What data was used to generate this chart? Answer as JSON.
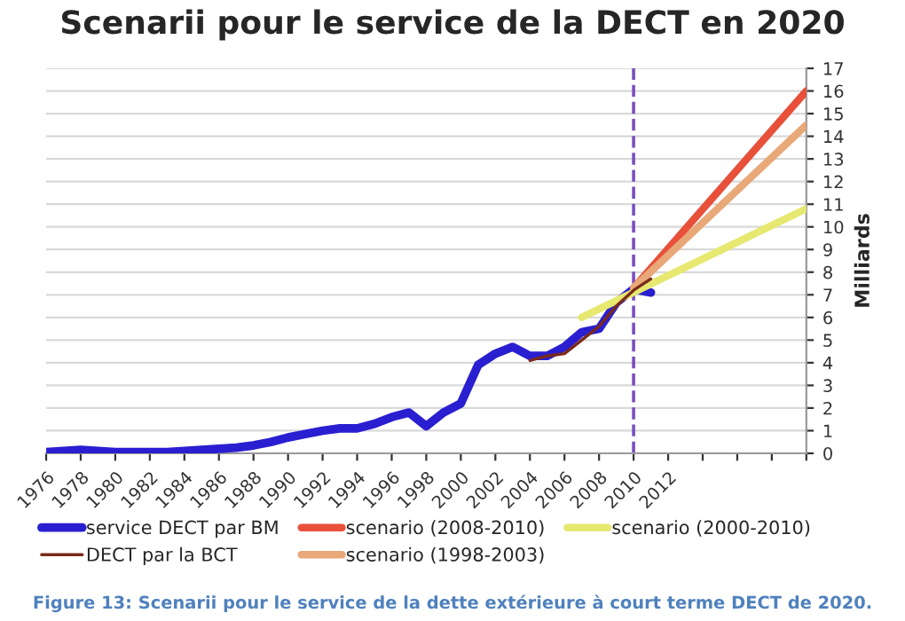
{
  "chart_data": {
    "type": "line",
    "title": "Scenarii pour le service de la DECT en 2020",
    "ylabel": "Milliards",
    "series": [
      {
        "name": "service DECT par BM",
        "color": "#2a1fd0",
        "x": [
          1976,
          1977,
          1978,
          1979,
          1980,
          1981,
          1982,
          1983,
          1984,
          1985,
          1986,
          1987,
          1988,
          1989,
          1990,
          1991,
          1992,
          1993,
          1994,
          1995,
          1996,
          1997,
          1998,
          1999,
          2000,
          2001,
          2002,
          2003,
          2004,
          2005,
          2006,
          2007,
          2008,
          2009,
          2010,
          2011
        ],
        "values": [
          0.05,
          0.1,
          0.15,
          0.1,
          0.05,
          0.05,
          0.05,
          0.05,
          0.1,
          0.15,
          0.2,
          0.25,
          0.35,
          0.5,
          0.7,
          0.85,
          1.0,
          1.1,
          1.1,
          1.3,
          1.6,
          1.8,
          1.2,
          1.8,
          2.2,
          3.9,
          4.4,
          4.7,
          4.3,
          4.3,
          4.7,
          5.35,
          5.5,
          6.65,
          7.25,
          7.1
        ]
      },
      {
        "name": "DECT par la BCT",
        "color": "#7a2a1a",
        "x": [
          2004,
          2005,
          2006,
          2007,
          2008,
          2009,
          2010,
          2011
        ],
        "values": [
          4.1,
          4.3,
          4.4,
          5.0,
          5.6,
          6.5,
          7.2,
          7.7
        ]
      },
      {
        "name": "scenario (2008-2010)",
        "color": "#e8503a",
        "x": [
          2010,
          2020
        ],
        "values": [
          7.3,
          16.0
        ]
      },
      {
        "name": "scenario (1998-2003)",
        "color": "#e8a878",
        "x": [
          2010,
          2020
        ],
        "values": [
          7.3,
          14.5
        ]
      },
      {
        "name": "scenario (2000-2010)",
        "color": "#e6e870",
        "x": [
          2007,
          2020
        ],
        "values": [
          6.0,
          10.8
        ]
      }
    ],
    "xlim": [
      1976,
      2020
    ],
    "xticks": [
      1976,
      1978,
      1980,
      1982,
      1984,
      1986,
      1988,
      1990,
      1992,
      1994,
      1996,
      1998,
      2000,
      2002,
      2004,
      2006,
      2008,
      2010,
      2012,
      {
        "value": 2014,
        "label": null
      },
      {
        "value": 2016,
        "label": null
      },
      {
        "value": 2018,
        "label": null
      },
      {
        "value": 2020,
        "label": null
      }
    ],
    "ylim": [
      0,
      17
    ],
    "yticks": [
      0,
      1,
      2,
      3,
      4,
      5,
      6,
      7,
      8,
      9,
      10,
      11,
      12,
      13,
      14,
      15,
      16,
      17
    ],
    "grid": "y",
    "legend": "bottom",
    "ref_lines": [
      {
        "axis": "x",
        "value": 2010,
        "color": "#7a4fc0",
        "line_style": "dashed"
      }
    ],
    "annotations": [
      "Figure 13: Scenarii pour le service de la dette extérieure à court terme DECT de 2020."
    ]
  }
}
